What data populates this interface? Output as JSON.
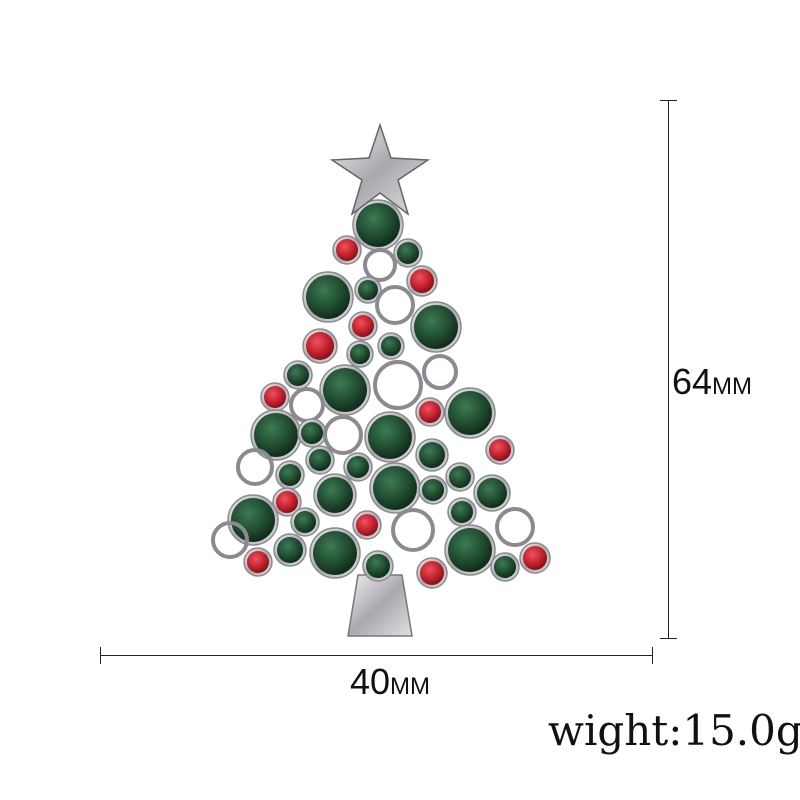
{
  "product": {
    "subject": "christmas-tree-brooch",
    "gem_colors": {
      "green": "#1f4a2e",
      "red": "#c0202a",
      "metal": "#c8c8cc"
    }
  },
  "dimensions": {
    "height_value": "64",
    "height_unit": "MM",
    "width_value": "40",
    "width_unit": "MM",
    "weight": "wight:15.0g"
  }
}
